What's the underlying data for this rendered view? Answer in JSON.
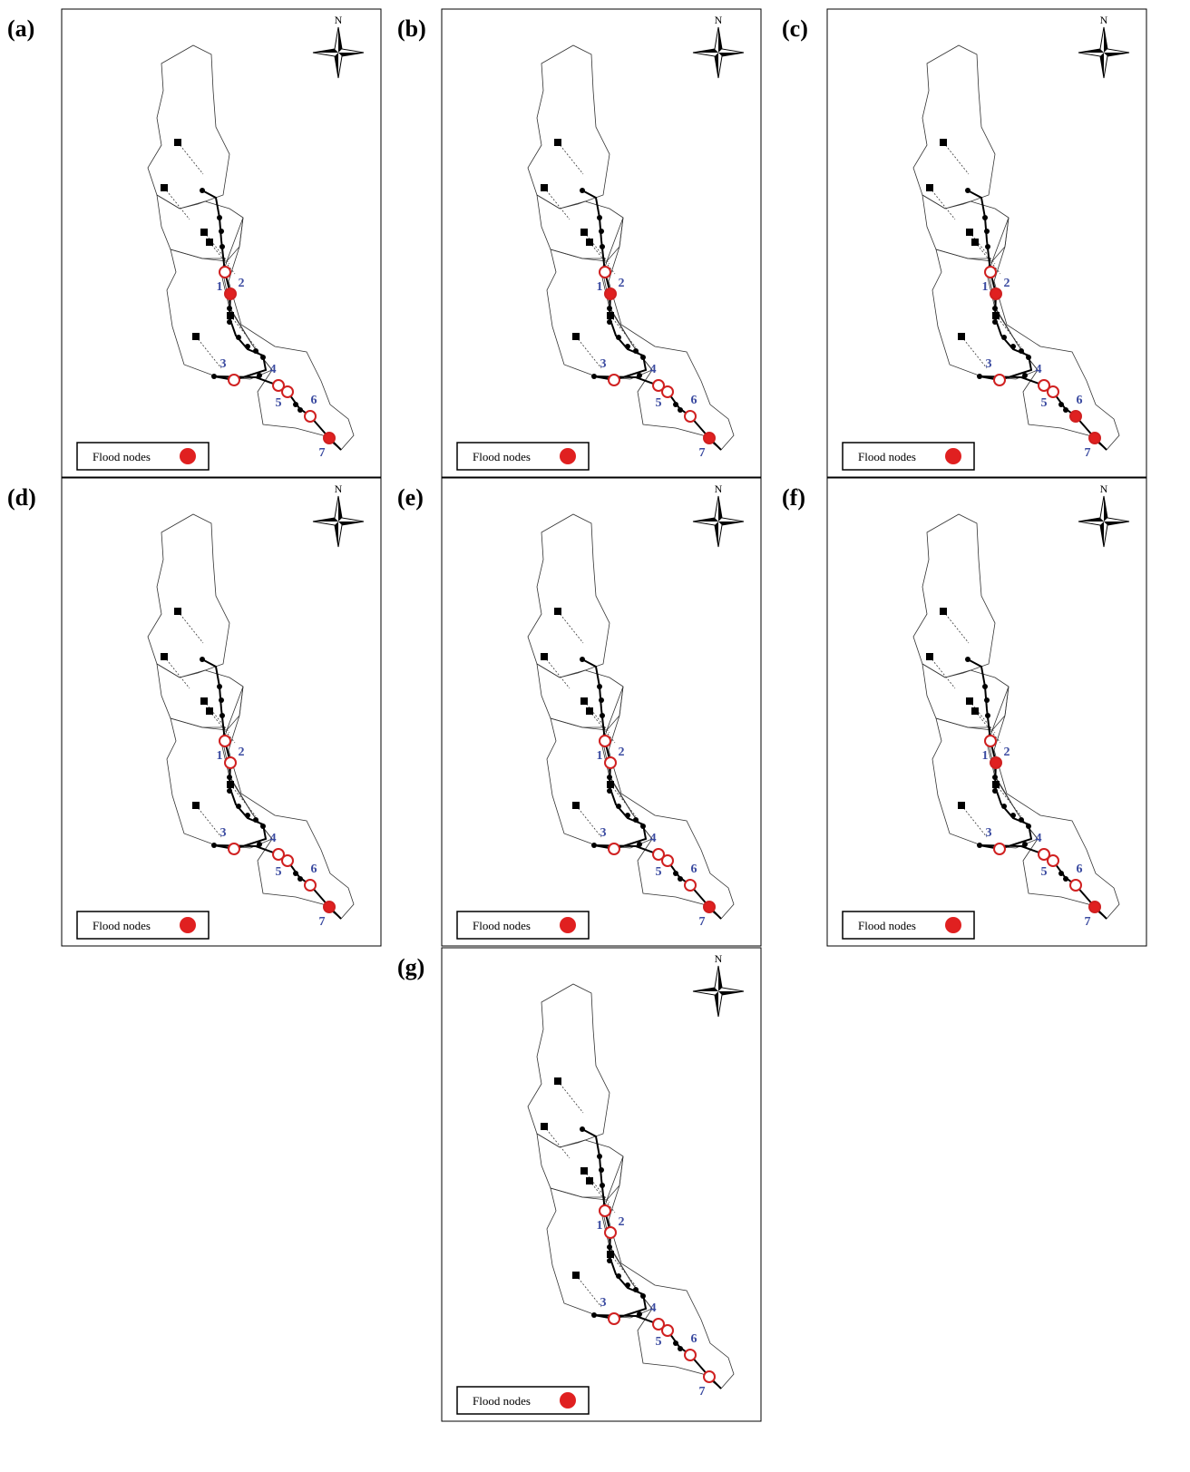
{
  "north": "N",
  "legend": "Flood nodes",
  "node_labels": [
    "1",
    "2",
    "3",
    "4",
    "5",
    "6",
    "7"
  ],
  "panels": [
    {
      "label": "(a)",
      "flooded": [
        false,
        true,
        false,
        false,
        false,
        false,
        true
      ]
    },
    {
      "label": "(b)",
      "flooded": [
        false,
        true,
        false,
        false,
        false,
        false,
        true
      ]
    },
    {
      "label": "(c)",
      "flooded": [
        false,
        true,
        false,
        false,
        false,
        true,
        true
      ]
    },
    {
      "label": "(d)",
      "flooded": [
        false,
        false,
        false,
        false,
        false,
        false,
        true
      ]
    },
    {
      "label": "(e)",
      "flooded": [
        false,
        false,
        false,
        false,
        false,
        false,
        true
      ]
    },
    {
      "label": "(f)",
      "flooded": [
        false,
        true,
        false,
        false,
        false,
        false,
        true
      ]
    },
    {
      "label": "(g)",
      "flooded": [
        false,
        false,
        false,
        false,
        false,
        false,
        false
      ]
    }
  ]
}
